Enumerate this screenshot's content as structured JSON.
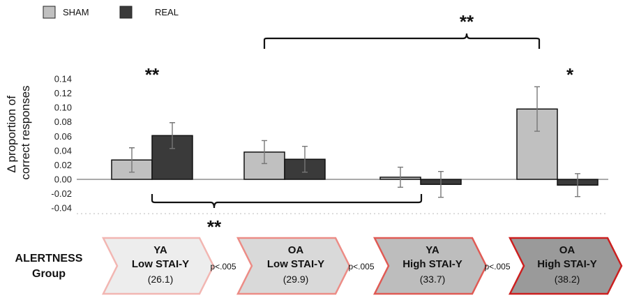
{
  "chart_data": {
    "type": "bar",
    "ylabel": "Δ proportion of correct responses",
    "ylabel_lines": [
      "Δ proportion of",
      "correct responses"
    ],
    "ylim": [
      -0.04,
      0.14
    ],
    "yticks": [
      "0.14",
      "0.12",
      "0.10",
      "0.08",
      "0.06",
      "0.04",
      "0.02",
      "0.00",
      "-0.02",
      "-0.04"
    ],
    "legend_position": "top-left",
    "series": [
      {
        "name": "SHAM",
        "color": "#c0c0c0",
        "values": [
          0.027,
          0.038,
          0.003,
          0.098
        ],
        "errors": [
          0.017,
          0.016,
          0.014,
          0.031
        ]
      },
      {
        "name": "REAL",
        "color": "#3a3a3a",
        "values": [
          0.061,
          0.028,
          -0.007,
          -0.008
        ],
        "errors": [
          0.018,
          0.018,
          0.018,
          0.016
        ]
      }
    ],
    "annotations": {
      "bar_stars": [
        {
          "group": 0,
          "text": "**"
        },
        {
          "group": 3,
          "text": "*"
        }
      ],
      "top_bracket_text": "**",
      "bottom_bracket_text": "**"
    }
  },
  "group_axis": {
    "title_line1": "ALERTNESS",
    "title_line2": "Group",
    "groups": [
      {
        "line1": "YA",
        "line2": "Low STAI-Y",
        "line3": "(26.1)",
        "fill": "#ededed",
        "stroke": "#f2b6b2"
      },
      {
        "line1": "OA",
        "line2": "Low STAI-Y",
        "line3": "(29.9)",
        "fill": "#d9d9d9",
        "stroke": "#ec8c86"
      },
      {
        "line1": "YA",
        "line2": "High STAI-Y",
        "line3": "(33.7)",
        "fill": "#bdbdbd",
        "stroke": "#e05a54"
      },
      {
        "line1": "OA",
        "line2": "High STAI-Y",
        "line3": "(38.2)",
        "fill": "#9a9a9a",
        "stroke": "#cc1f1f"
      }
    ],
    "pvalues": [
      "p<.005",
      "p<.005",
      "p<.005"
    ]
  }
}
